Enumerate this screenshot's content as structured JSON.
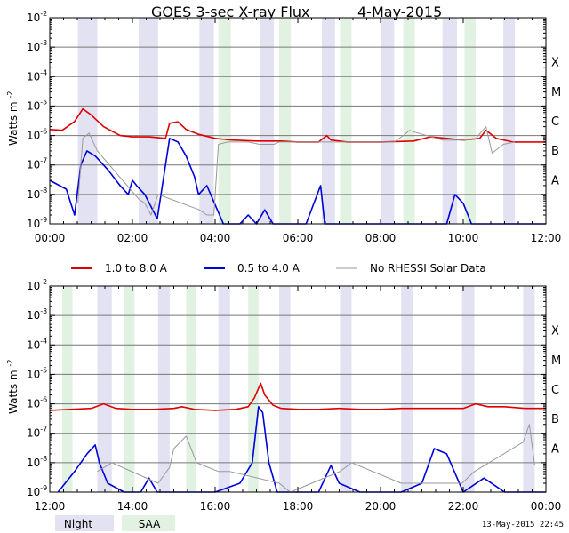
{
  "chart_data": {
    "type": "line",
    "title": "GOES 3-sec X-ray Flux",
    "date": "4-May-2015",
    "ylabel": "Watts m",
    "ylabel_exp": "-2",
    "y_scale": "log",
    "ylim": [
      1e-09,
      0.01
    ],
    "y_tick_exponents": [
      "-9",
      "-8",
      "-7",
      "-6",
      "-5",
      "-4",
      "-3",
      "-2"
    ],
    "y_tick_base": "10",
    "class_labels": [
      {
        "label": "A",
        "level": 1e-08
      },
      {
        "label": "B",
        "level": 1e-07
      },
      {
        "label": "C",
        "level": 1e-06
      },
      {
        "label": "M",
        "level": 1e-05
      },
      {
        "label": "X",
        "level": 0.0001
      }
    ],
    "panels": [
      {
        "name": "morning",
        "x_range_hours": [
          0,
          12
        ],
        "x_tick_labels": [
          "00:00",
          "02:00",
          "04:00",
          "06:00",
          "08:00",
          "10:00",
          "12:00"
        ],
        "night_bands_hours": [
          [
            0.68,
            1.15
          ],
          [
            2.15,
            2.62
          ],
          [
            3.62,
            3.97
          ],
          [
            5.08,
            5.42
          ],
          [
            6.58,
            6.9
          ],
          [
            8.02,
            8.33
          ],
          [
            9.5,
            9.85
          ],
          [
            10.97,
            11.25
          ]
        ],
        "saa_bands_hours": [
          [
            4.08,
            4.38
          ],
          [
            5.55,
            5.83
          ],
          [
            7.02,
            7.3
          ],
          [
            8.55,
            8.83
          ],
          [
            10.03,
            10.3
          ]
        ],
        "series": [
          {
            "name": "1.0 to 8.0 A",
            "color": "#dd0000",
            "points_hours_flux": [
              [
                0,
                1.6e-06
              ],
              [
                0.3,
                1.5e-06
              ],
              [
                0.6,
                3e-06
              ],
              [
                0.8,
                8e-06
              ],
              [
                1.0,
                5e-06
              ],
              [
                1.3,
                2e-06
              ],
              [
                1.7,
                1e-06
              ],
              [
                2.0,
                9e-07
              ],
              [
                2.4,
                9e-07
              ],
              [
                2.8,
                8e-07
              ],
              [
                2.9,
                2.6e-06
              ],
              [
                3.1,
                2.9e-06
              ],
              [
                3.3,
                1.6e-06
              ],
              [
                3.6,
                1.1e-06
              ],
              [
                4.0,
                8e-07
              ],
              [
                4.4,
                7e-07
              ],
              [
                5.0,
                6.5e-07
              ],
              [
                5.6,
                6.5e-07
              ],
              [
                6.0,
                6e-07
              ],
              [
                6.5,
                6e-07
              ],
              [
                6.7,
                1e-06
              ],
              [
                6.8,
                7e-07
              ],
              [
                7.2,
                6e-07
              ],
              [
                8.0,
                6e-07
              ],
              [
                8.8,
                6.5e-07
              ],
              [
                9.2,
                9e-07
              ],
              [
                9.6,
                8e-07
              ],
              [
                10.0,
                7e-07
              ],
              [
                10.4,
                8e-07
              ],
              [
                10.55,
                1.5e-06
              ],
              [
                10.8,
                8e-07
              ],
              [
                11.2,
                6e-07
              ],
              [
                12,
                6e-07
              ]
            ]
          },
          {
            "name": "0.5 to 4.0 A",
            "color": "#0000dd",
            "points_hours_flux": [
              [
                0,
                3e-08
              ],
              [
                0.4,
                1.5e-08
              ],
              [
                0.6,
                2e-09
              ],
              [
                0.75,
                1e-07
              ],
              [
                0.9,
                3e-07
              ],
              [
                1.1,
                2e-07
              ],
              [
                1.4,
                7e-08
              ],
              [
                1.7,
                2e-08
              ],
              [
                1.9,
                1e-08
              ],
              [
                2.0,
                3e-08
              ],
              [
                2.1,
                2e-08
              ],
              [
                2.3,
                1e-08
              ],
              [
                2.6,
                1.5e-09
              ],
              [
                2.9,
                8e-07
              ],
              [
                3.1,
                6e-07
              ],
              [
                3.3,
                2e-07
              ],
              [
                3.5,
                4e-08
              ],
              [
                3.6,
                1e-08
              ],
              [
                3.8,
                2e-08
              ],
              [
                4.2,
                1e-09
              ],
              [
                4.6,
                1e-09
              ],
              [
                4.8,
                2e-09
              ],
              [
                5.0,
                1e-09
              ],
              [
                5.2,
                3e-09
              ],
              [
                5.4,
                1e-09
              ],
              [
                5.7,
                1e-09
              ],
              [
                6.2,
                1e-09
              ],
              [
                6.55,
                2e-08
              ],
              [
                6.65,
                1e-09
              ],
              [
                7.0,
                1e-09
              ],
              [
                7.6,
                1e-09
              ],
              [
                8.5,
                1e-09
              ],
              [
                9.0,
                1e-09
              ],
              [
                9.6,
                1e-09
              ],
              [
                9.8,
                1e-08
              ],
              [
                10.0,
                5e-09
              ],
              [
                10.2,
                1e-09
              ],
              [
                10.5,
                1e-09
              ],
              [
                11.0,
                1e-09
              ],
              [
                11.5,
                1e-09
              ],
              [
                12,
                1e-09
              ]
            ]
          },
          {
            "name": "No RHESSI Solar Data",
            "color": "#999999",
            "points_hours_flux": [
              [
                0.68,
                5e-09
              ],
              [
                0.8,
                8e-07
              ],
              [
                0.95,
                1.2e-06
              ],
              [
                1.15,
                3e-07
              ],
              [
                2.15,
                7e-09
              ],
              [
                2.3,
                5e-09
              ],
              [
                2.45,
                2e-09
              ],
              [
                2.62,
                1e-08
              ],
              [
                3.62,
                3e-09
              ],
              [
                3.8,
                2e-09
              ],
              [
                3.97,
                2e-09
              ],
              [
                4.08,
                5e-07
              ],
              [
                4.3,
                6e-07
              ],
              [
                4.8,
                6e-07
              ],
              [
                5.08,
                5e-07
              ],
              [
                5.42,
                5e-07
              ],
              [
                5.55,
                6e-07
              ],
              [
                5.83,
                6e-07
              ],
              [
                6.58,
                6e-07
              ],
              [
                6.9,
                6e-07
              ],
              [
                7.02,
                6e-07
              ],
              [
                7.3,
                6e-07
              ],
              [
                8.02,
                6e-07
              ],
              [
                8.33,
                6e-07
              ],
              [
                8.55,
                1e-06
              ],
              [
                8.7,
                1.5e-06
              ],
              [
                8.83,
                1.3e-06
              ],
              [
                9.5,
                7e-07
              ],
              [
                9.85,
                7e-07
              ],
              [
                10.03,
                7e-07
              ],
              [
                10.3,
                8e-07
              ],
              [
                10.55,
                2e-06
              ],
              [
                10.7,
                2.5e-07
              ],
              [
                10.97,
                5e-07
              ],
              [
                11.25,
                6e-07
              ]
            ]
          }
        ]
      },
      {
        "name": "afternoon",
        "x_range_hours": [
          12,
          24
        ],
        "x_tick_labels": [
          "12:00",
          "14:00",
          "16:00",
          "18:00",
          "20:00",
          "22:00",
          "00:00"
        ],
        "night_bands_hours": [
          [
            13.15,
            13.5
          ],
          [
            14.62,
            14.9
          ],
          [
            16.08,
            16.36
          ],
          [
            17.55,
            17.82
          ],
          [
            19.02,
            19.3
          ],
          [
            20.5,
            20.78
          ],
          [
            21.97,
            22.27
          ],
          [
            23.45,
            23.73
          ]
        ],
        "saa_bands_hours": [
          [
            12.3,
            12.55
          ],
          [
            13.8,
            14.05
          ],
          [
            15.3,
            15.55
          ],
          [
            16.8,
            17.05
          ]
        ],
        "series": [
          {
            "name": "1.0 to 8.0 A",
            "color": "#dd0000",
            "points_hours_flux": [
              [
                12,
                6e-07
              ],
              [
                12.5,
                6.5e-07
              ],
              [
                13.0,
                7e-07
              ],
              [
                13.3,
                1e-06
              ],
              [
                13.6,
                7e-07
              ],
              [
                14.0,
                6.5e-07
              ],
              [
                14.5,
                6.5e-07
              ],
              [
                15.0,
                7e-07
              ],
              [
                15.2,
                8e-07
              ],
              [
                15.5,
                6.5e-07
              ],
              [
                16.0,
                6e-07
              ],
              [
                16.5,
                6.5e-07
              ],
              [
                16.8,
                8e-07
              ],
              [
                16.95,
                1.6e-06
              ],
              [
                17.1,
                5e-06
              ],
              [
                17.2,
                2e-06
              ],
              [
                17.4,
                9e-07
              ],
              [
                17.6,
                7e-07
              ],
              [
                18.0,
                6.5e-07
              ],
              [
                18.5,
                6.5e-07
              ],
              [
                19.0,
                7e-07
              ],
              [
                19.5,
                6.5e-07
              ],
              [
                20.0,
                6.5e-07
              ],
              [
                20.5,
                7e-07
              ],
              [
                21.0,
                7e-07
              ],
              [
                21.5,
                7e-07
              ],
              [
                22.0,
                7e-07
              ],
              [
                22.3,
                1e-06
              ],
              [
                22.6,
                8e-07
              ],
              [
                23.0,
                8e-07
              ],
              [
                23.5,
                7e-07
              ],
              [
                24,
                7e-07
              ]
            ]
          },
          {
            "name": "0.5 to 4.0 A",
            "color": "#0000dd",
            "points_hours_flux": [
              [
                12.2,
                1e-09
              ],
              [
                12.6,
                5e-09
              ],
              [
                12.9,
                2e-08
              ],
              [
                13.1,
                4e-08
              ],
              [
                13.2,
                1e-08
              ],
              [
                13.4,
                2e-09
              ],
              [
                13.8,
                1e-09
              ],
              [
                14.2,
                1e-09
              ],
              [
                14.4,
                3e-09
              ],
              [
                14.6,
                1e-09
              ],
              [
                15.0,
                1e-09
              ],
              [
                15.5,
                1e-09
              ],
              [
                16.0,
                1e-09
              ],
              [
                16.6,
                2e-09
              ],
              [
                16.9,
                1e-08
              ],
              [
                17.05,
                8e-07
              ],
              [
                17.15,
                5e-07
              ],
              [
                17.3,
                1e-08
              ],
              [
                17.5,
                1e-09
              ],
              [
                18.0,
                1e-09
              ],
              [
                18.5,
                1e-09
              ],
              [
                18.8,
                8e-09
              ],
              [
                19.0,
                2e-09
              ],
              [
                19.5,
                1e-09
              ],
              [
                20.0,
                1e-09
              ],
              [
                20.5,
                1e-09
              ],
              [
                21.0,
                2e-09
              ],
              [
                21.3,
                3e-08
              ],
              [
                21.6,
                2e-08
              ],
              [
                22.0,
                1e-09
              ],
              [
                22.5,
                3e-09
              ],
              [
                23.0,
                1e-09
              ],
              [
                23.5,
                1e-09
              ],
              [
                24,
                1e-09
              ]
            ]
          },
          {
            "name": "No RHESSI Solar Data",
            "color": "#999999",
            "points_hours_flux": [
              [
                13.15,
                5e-09
              ],
              [
                13.5,
                1e-08
              ],
              [
                14.62,
                2e-09
              ],
              [
                14.9,
                7e-09
              ],
              [
                15.0,
                3e-08
              ],
              [
                15.3,
                8e-08
              ],
              [
                15.55,
                1e-08
              ],
              [
                16.08,
                5e-09
              ],
              [
                16.36,
                5e-09
              ],
              [
                17.55,
                2e-09
              ],
              [
                17.82,
                1e-09
              ],
              [
                19.02,
                5e-09
              ],
              [
                19.3,
                1e-08
              ],
              [
                20.5,
                2e-09
              ],
              [
                20.78,
                2e-09
              ],
              [
                21.97,
                2e-09
              ],
              [
                22.27,
                5e-09
              ],
              [
                23.45,
                5e-08
              ],
              [
                23.6,
                2e-07
              ],
              [
                23.73,
                8e-09
              ]
            ]
          }
        ]
      }
    ]
  },
  "legend": {
    "items": [
      {
        "label": "1.0 to 8.0 A",
        "color": "#dd0000"
      },
      {
        "label": "0.5 to 4.0 A",
        "color": "#0000dd"
      },
      {
        "label": "No RHESSI Solar Data",
        "color": "#999999"
      }
    ],
    "shading": [
      {
        "label": "Night",
        "color": "#e2e2f2"
      },
      {
        "label": "SAA",
        "color": "#e2f2e2"
      }
    ]
  },
  "footer": {
    "timestamp": "13-May-2015 22:45"
  }
}
